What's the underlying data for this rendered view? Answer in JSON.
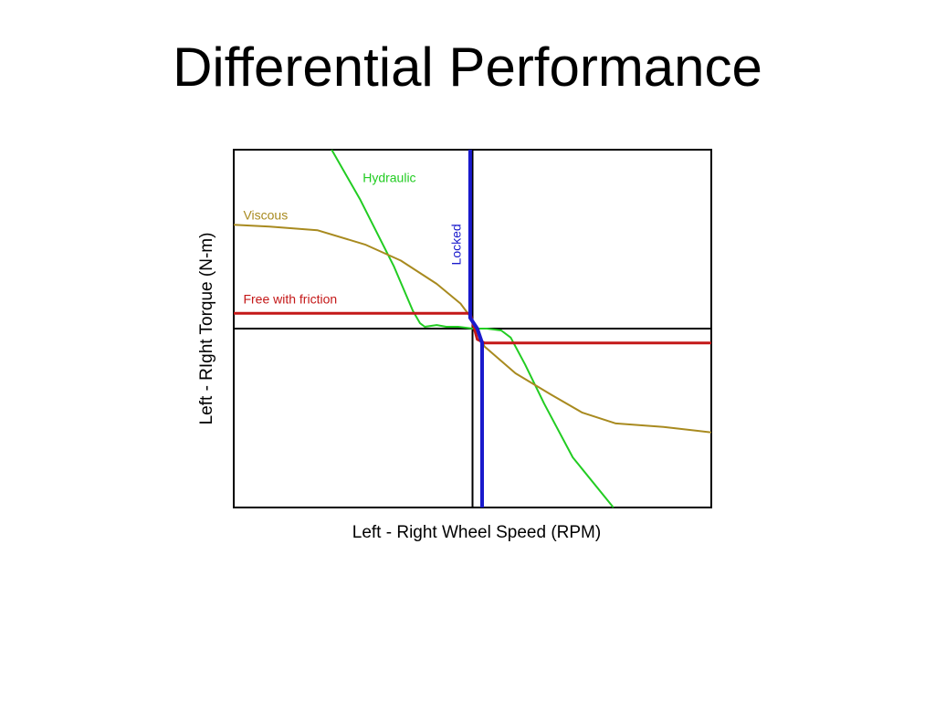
{
  "slide": {
    "title": "Differential Performance"
  },
  "chart_data": {
    "type": "line",
    "title": "",
    "xlabel": "Left - Right Wheel Speed (RPM)",
    "ylabel": "Left - RIght Torque (N-m)",
    "xlim": [
      -1,
      1
    ],
    "ylim": [
      -1,
      1
    ],
    "grid": false,
    "tick_labels": "none",
    "series": [
      {
        "name": "Hydraulic",
        "color": "#22cc22",
        "x": [
          -0.59,
          -0.47,
          -0.33,
          -0.25,
          -0.22,
          -0.2,
          -0.15,
          -0.11,
          -0.06,
          0.0,
          0.06,
          0.12,
          0.16,
          0.22,
          0.3,
          0.42,
          0.59
        ],
        "y": [
          1.0,
          0.72,
          0.35,
          0.1,
          0.03,
          0.01,
          0.02,
          0.01,
          0.01,
          0.0,
          0.0,
          -0.01,
          -0.05,
          -0.2,
          -0.42,
          -0.72,
          -1.0
        ]
      },
      {
        "name": "Viscous",
        "color": "#a88a1f",
        "x": [
          -1.0,
          -0.85,
          -0.65,
          -0.45,
          -0.3,
          -0.15,
          -0.05,
          0.0,
          0.05,
          0.18,
          0.33,
          0.46,
          0.6,
          0.8,
          1.0
        ],
        "y": [
          0.58,
          0.57,
          0.55,
          0.47,
          0.38,
          0.25,
          0.14,
          0.05,
          -0.1,
          -0.25,
          -0.37,
          -0.47,
          -0.53,
          -0.55,
          -0.58
        ]
      },
      {
        "name": "Free with friction",
        "color": "#c41818",
        "x": [
          -1.0,
          -0.01,
          0.02,
          0.05,
          1.0
        ],
        "y": [
          0.085,
          0.085,
          -0.06,
          -0.08,
          -0.08
        ]
      },
      {
        "name": "Locked",
        "color": "#1a1acc",
        "x": [
          -0.01,
          -0.01,
          0.02,
          0.04,
          0.04
        ],
        "y": [
          1.0,
          0.06,
          0.0,
          -0.08,
          -1.0
        ]
      }
    ],
    "annotations": [
      {
        "text": "Hydraulic",
        "series": "Hydraulic",
        "x": -0.46,
        "y": 0.82,
        "rotation": 0
      },
      {
        "text": "Viscous",
        "series": "Viscous",
        "x": -0.96,
        "y": 0.61,
        "rotation": 0
      },
      {
        "text": "Free with friction",
        "series": "Free with friction",
        "x": -0.96,
        "y": 0.14,
        "rotation": 0
      },
      {
        "text": "Locked",
        "series": "Locked",
        "x": -0.05,
        "y": 0.47,
        "rotation": -90
      }
    ],
    "reference_lines": {
      "x0": true,
      "y0": true
    }
  }
}
